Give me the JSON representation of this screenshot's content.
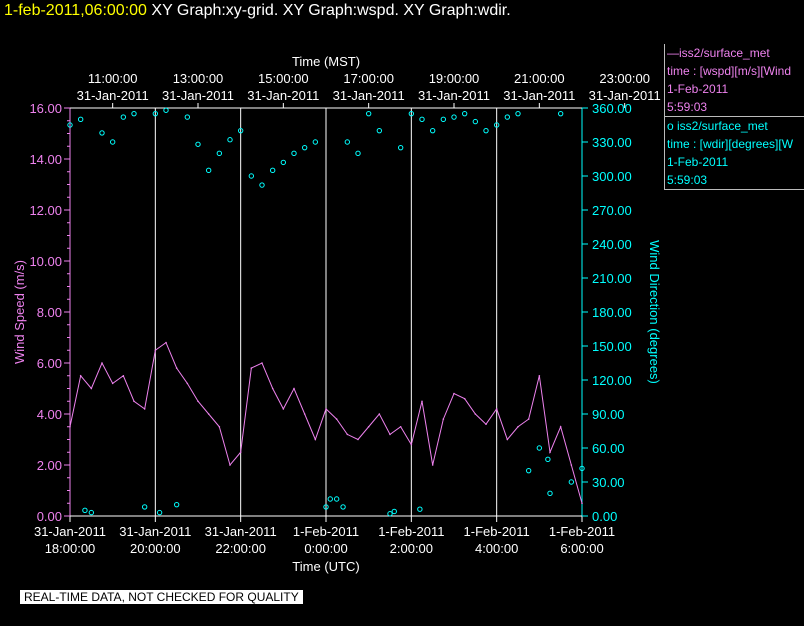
{
  "header": {
    "timestamp": "1-feb-2011,06:00:00",
    "graphs": "XY Graph:xy-grid.  XY Graph:wspd.  XY Graph:wdir."
  },
  "colors": {
    "wspd": "#ee82ee",
    "wdir": "#00ffff",
    "axis": "#ffffff",
    "timestamp": "#ffff00"
  },
  "legend": {
    "wspd": {
      "line1": "—iss2/surface_met",
      "line2": "time : [wspd][m/s][Wind",
      "line3": "1-Feb-2011",
      "line4": "5:59:03"
    },
    "wdir": {
      "line1": "o  iss2/surface_met",
      "line2": "time : [wdir][degrees][W",
      "line3": "1-Feb-2011",
      "line4": "5:59:03"
    }
  },
  "footer": {
    "quality_notice": "REAL-TIME DATA, NOT CHECKED FOR QUALITY"
  },
  "chart_data": {
    "type": "line",
    "top_axis_title": "Time (MST)",
    "bottom_axis_title": "Time (UTC)",
    "left_axis_title": "Wind Speed (m/s)",
    "right_axis_title": "Wind Direction (degrees)",
    "x_range_utc": [
      "2011-01-31 18:00",
      "2011-02-01 06:00"
    ],
    "top_ticks": [
      {
        "time": "11:00:00",
        "date": "31-Jan-2011"
      },
      {
        "time": "13:00:00",
        "date": "31-Jan-2011"
      },
      {
        "time": "15:00:00",
        "date": "31-Jan-2011"
      },
      {
        "time": "17:00:00",
        "date": "31-Jan-2011"
      },
      {
        "time": "19:00:00",
        "date": "31-Jan-2011"
      },
      {
        "time": "21:00:00",
        "date": "31-Jan-2011"
      },
      {
        "time": "23:00:00",
        "date": "31-Jan-2011"
      }
    ],
    "bottom_ticks": [
      {
        "date": "31-Jan-2011",
        "time": "18:00:00"
      },
      {
        "date": "31-Jan-2011",
        "time": "20:00:00"
      },
      {
        "date": "31-Jan-2011",
        "time": "22:00:00"
      },
      {
        "date": "1-Feb-2011",
        "time": "0:00:00"
      },
      {
        "date": "1-Feb-2011",
        "time": "2:00:00"
      },
      {
        "date": "1-Feb-2011",
        "time": "4:00:00"
      },
      {
        "date": "1-Feb-2011",
        "time": "6:00:00"
      }
    ],
    "left_ticks": [
      "0.00",
      "2.00",
      "4.00",
      "6.00",
      "8.00",
      "10.00",
      "12.00",
      "14.00",
      "16.00"
    ],
    "right_ticks": [
      "0.00",
      "30.00",
      "60.00",
      "90.00",
      "120.00",
      "150.00",
      "180.00",
      "210.00",
      "240.00",
      "270.00",
      "300.00",
      "330.00",
      "360.00"
    ],
    "ylim_left": [
      0,
      16
    ],
    "ylim_right": [
      0,
      360
    ],
    "grid": "vertical",
    "legend_position": "right",
    "series": [
      {
        "name": "iss2/surface_met time : [wspd][m/s][Wind",
        "axis": "left",
        "style": "line",
        "x_hours": [
          0.0,
          0.25,
          0.5,
          0.75,
          1.0,
          1.25,
          1.5,
          1.75,
          2.0,
          2.25,
          2.5,
          2.75,
          3.0,
          3.25,
          3.5,
          3.75,
          4.0,
          4.25,
          4.5,
          4.75,
          5.0,
          5.25,
          5.5,
          5.75,
          6.0,
          6.25,
          6.5,
          6.75,
          7.0,
          7.25,
          7.5,
          7.75,
          8.0,
          8.25,
          8.5,
          8.75,
          9.0,
          9.25,
          9.5,
          9.75,
          10.0,
          10.25,
          10.5,
          10.75,
          11.0,
          11.25,
          11.5,
          11.75,
          12.0
        ],
        "values": [
          3.5,
          5.5,
          5.0,
          6.0,
          5.2,
          5.5,
          4.5,
          4.2,
          6.5,
          6.8,
          5.8,
          5.2,
          4.5,
          4.0,
          3.5,
          2.0,
          2.5,
          5.8,
          6.0,
          5.0,
          4.2,
          5.0,
          4.0,
          3.0,
          4.2,
          3.8,
          3.2,
          3.0,
          3.5,
          4.0,
          3.2,
          3.5,
          2.8,
          4.5,
          2.0,
          3.8,
          4.8,
          4.6,
          4.0,
          3.6,
          4.2,
          3.0,
          3.5,
          3.8,
          5.5,
          2.5,
          3.5,
          2.0,
          0.5
        ]
      },
      {
        "name": "iss2/surface_met time : [wdir][degrees][W",
        "axis": "right",
        "style": "points",
        "x_hours": [
          0.0,
          0.25,
          0.5,
          0.75,
          1.0,
          1.25,
          1.5,
          1.75,
          2.0,
          2.25,
          2.5,
          2.75,
          3.0,
          3.25,
          3.5,
          3.75,
          4.0,
          4.25,
          4.5,
          4.75,
          5.0,
          5.25,
          5.5,
          5.75,
          6.0,
          6.25,
          6.5,
          6.75,
          7.0,
          7.25,
          7.5,
          7.75,
          8.0,
          8.25,
          8.5,
          8.75,
          9.0,
          9.25,
          9.5,
          9.75,
          10.0,
          10.25,
          10.5,
          10.75,
          11.0,
          11.25,
          11.5,
          11.75,
          12.0,
          0.35,
          2.1,
          6.1,
          6.4,
          7.6,
          8.2,
          11.2
        ],
        "values": [
          345,
          350,
          3,
          338,
          330,
          352,
          355,
          8,
          355,
          358,
          10,
          352,
          328,
          305,
          320,
          332,
          340,
          300,
          292,
          305,
          312,
          320,
          325,
          330,
          8,
          15,
          330,
          320,
          355,
          340,
          2,
          325,
          355,
          350,
          340,
          350,
          352,
          355,
          348,
          340,
          345,
          352,
          355,
          40,
          60,
          20,
          355,
          30,
          42,
          5,
          3,
          15,
          8,
          4,
          6,
          50
        ]
      }
    ]
  }
}
